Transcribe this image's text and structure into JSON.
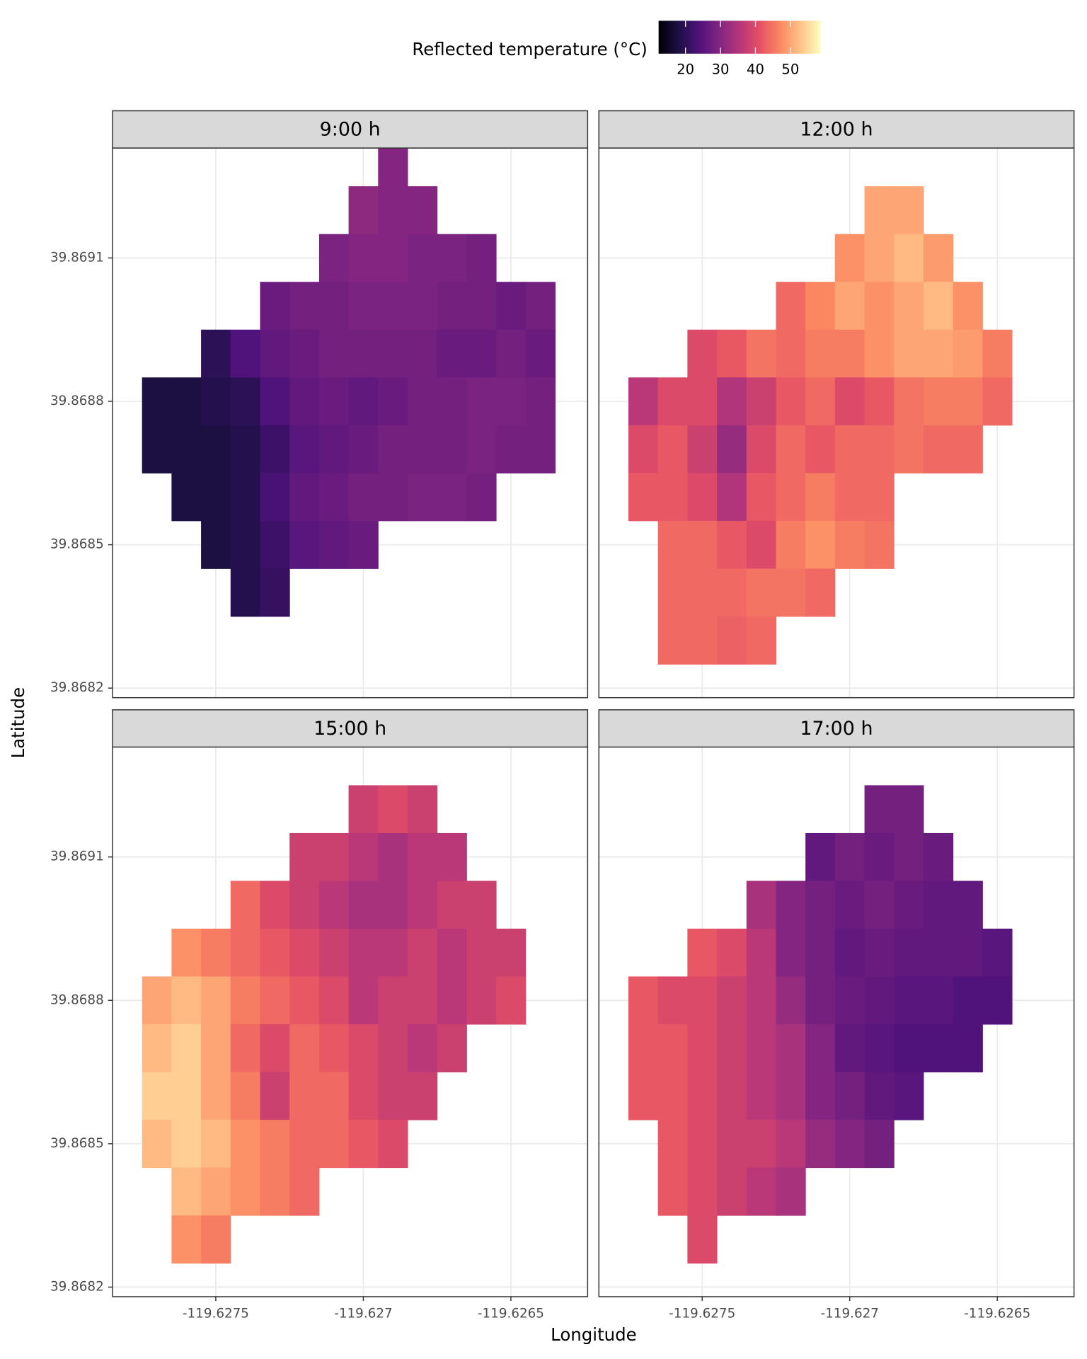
{
  "chart_data": {
    "type": "heatmap",
    "legend_title": "Reflected temperature (°C)",
    "colorscale": "magma",
    "clim": [
      12.3,
      58.6
    ],
    "cticks": [
      20,
      30,
      40,
      50
    ],
    "xlabel": "Longitude",
    "ylabel": "Latitude",
    "grid": true,
    "legend_position": "top",
    "xlim": [
      -119.62785,
      -119.62624
    ],
    "ylim": [
      39.86818,
      39.86933
    ],
    "xticks": [
      -119.6275,
      -119.627,
      -119.6265
    ],
    "yticks": [
      39.8682,
      39.8685,
      39.8688,
      39.8691
    ],
    "x": [
      -119.6278,
      -119.6277,
      -119.6276,
      -119.6275,
      -119.6274,
      -119.6273,
      -119.6272,
      -119.6271,
      -119.627,
      -119.6269,
      -119.6268,
      -119.6267,
      -119.6266,
      -119.6265,
      -119.6264,
      -119.6263
    ],
    "y": [
      39.8693,
      39.8692,
      39.8691,
      39.869,
      39.8689,
      39.8688,
      39.8687,
      39.8686,
      39.8685,
      39.8684,
      39.8683,
      39.8682
    ],
    "facets": [
      {
        "title": "9:00 h",
        "values": [
          [
            null,
            null,
            null,
            null,
            null,
            null,
            null,
            null,
            null,
            30,
            null,
            null,
            null,
            null,
            null,
            null
          ],
          [
            null,
            null,
            null,
            null,
            null,
            null,
            null,
            null,
            31,
            30,
            30,
            null,
            null,
            null,
            null,
            null
          ],
          [
            null,
            null,
            null,
            null,
            null,
            null,
            null,
            29,
            30,
            30,
            29,
            29,
            28,
            null,
            null,
            null
          ],
          [
            null,
            null,
            null,
            null,
            null,
            27,
            28,
            28,
            29,
            29,
            29,
            28,
            28,
            27,
            28,
            null
          ],
          [
            null,
            null,
            null,
            20,
            24,
            26,
            27,
            28,
            28,
            28,
            28,
            27,
            27,
            28,
            27,
            null
          ],
          [
            null,
            18,
            18,
            19,
            20,
            24,
            26,
            27,
            26,
            27,
            28,
            28,
            29,
            29,
            28,
            null
          ],
          [
            null,
            18,
            18,
            18,
            19,
            22,
            25,
            26,
            27,
            28,
            28,
            28,
            29,
            28,
            28,
            null
          ],
          [
            null,
            null,
            18,
            18,
            19,
            23,
            26,
            27,
            28,
            28,
            29,
            29,
            28,
            null,
            null,
            null
          ],
          [
            null,
            null,
            null,
            18,
            19,
            22,
            25,
            26,
            27,
            null,
            null,
            null,
            null,
            null,
            null,
            null
          ],
          [
            null,
            null,
            null,
            null,
            19,
            21,
            null,
            null,
            null,
            null,
            null,
            null,
            null,
            null,
            null,
            null
          ],
          [
            null,
            null,
            null,
            null,
            null,
            null,
            null,
            null,
            null,
            null,
            null,
            null,
            null,
            null,
            null,
            null
          ],
          [
            null,
            null,
            null,
            null,
            null,
            null,
            null,
            null,
            null,
            null,
            null,
            null,
            null,
            null,
            null,
            null
          ]
        ]
      },
      {
        "title": "12:00 h",
        "values": [
          [
            null,
            null,
            null,
            null,
            null,
            null,
            null,
            null,
            null,
            null,
            null,
            null,
            null,
            null,
            null,
            null
          ],
          [
            null,
            null,
            null,
            null,
            null,
            null,
            null,
            null,
            null,
            50,
            50,
            null,
            null,
            null,
            null,
            null
          ],
          [
            null,
            null,
            null,
            null,
            null,
            null,
            null,
            null,
            48,
            50,
            52,
            49,
            null,
            null,
            null,
            null
          ],
          [
            null,
            null,
            null,
            null,
            null,
            null,
            44,
            47,
            50,
            48,
            50,
            52,
            48,
            null,
            null,
            null
          ],
          [
            null,
            null,
            null,
            40,
            42,
            45,
            44,
            46,
            46,
            48,
            50,
            50,
            49,
            46,
            null,
            null
          ],
          [
            null,
            36,
            40,
            40,
            35,
            38,
            42,
            44,
            40,
            42,
            45,
            46,
            46,
            44,
            null,
            null
          ],
          [
            null,
            40,
            42,
            38,
            32,
            40,
            44,
            42,
            44,
            44,
            45,
            44,
            44,
            null,
            null,
            null
          ],
          [
            null,
            42,
            42,
            40,
            35,
            42,
            44,
            46,
            44,
            44,
            null,
            null,
            null,
            null,
            null,
            null
          ],
          [
            null,
            null,
            44,
            44,
            42,
            40,
            46,
            48,
            46,
            45,
            null,
            null,
            null,
            null,
            null,
            null
          ],
          [
            null,
            null,
            44,
            44,
            44,
            45,
            45,
            44,
            null,
            null,
            null,
            null,
            null,
            null,
            null,
            null
          ],
          [
            null,
            null,
            44,
            44,
            43,
            44,
            null,
            null,
            null,
            null,
            null,
            null,
            null,
            null,
            null,
            null
          ],
          [
            null,
            null,
            null,
            null,
            null,
            null,
            null,
            null,
            null,
            null,
            null,
            null,
            null,
            null,
            null,
            null
          ]
        ]
      },
      {
        "title": "15:00 h",
        "values": [
          [
            null,
            null,
            null,
            null,
            null,
            null,
            null,
            null,
            null,
            null,
            null,
            null,
            null,
            null,
            null,
            null
          ],
          [
            null,
            null,
            null,
            null,
            null,
            null,
            null,
            null,
            38,
            40,
            38,
            null,
            null,
            null,
            null,
            null
          ],
          [
            null,
            null,
            null,
            null,
            null,
            null,
            38,
            38,
            36,
            34,
            36,
            36,
            null,
            null,
            null,
            null
          ],
          [
            null,
            null,
            null,
            null,
            44,
            40,
            38,
            36,
            34,
            34,
            36,
            38,
            38,
            null,
            null,
            null
          ],
          [
            null,
            null,
            48,
            46,
            44,
            42,
            40,
            38,
            36,
            36,
            38,
            36,
            38,
            38,
            null,
            null
          ],
          [
            null,
            50,
            52,
            50,
            46,
            44,
            42,
            40,
            36,
            38,
            38,
            36,
            38,
            40,
            null,
            null
          ],
          [
            null,
            52,
            54,
            50,
            44,
            40,
            44,
            42,
            40,
            38,
            36,
            38,
            null,
            null,
            null,
            null
          ],
          [
            null,
            54,
            54,
            50,
            46,
            38,
            44,
            44,
            40,
            38,
            38,
            null,
            null,
            null,
            null,
            null
          ],
          [
            null,
            52,
            54,
            52,
            48,
            46,
            44,
            44,
            42,
            40,
            null,
            null,
            null,
            null,
            null,
            null
          ],
          [
            null,
            null,
            52,
            50,
            48,
            46,
            44,
            null,
            null,
            null,
            null,
            null,
            null,
            null,
            null,
            null
          ],
          [
            null,
            null,
            48,
            46,
            null,
            null,
            null,
            null,
            null,
            null,
            null,
            null,
            null,
            null,
            null,
            null
          ],
          [
            null,
            null,
            null,
            null,
            null,
            null,
            null,
            null,
            null,
            null,
            null,
            null,
            null,
            null,
            null,
            null
          ]
        ]
      },
      {
        "title": "17:00 h",
        "values": [
          [
            null,
            null,
            null,
            null,
            null,
            null,
            null,
            null,
            null,
            null,
            null,
            null,
            null,
            null,
            null,
            null
          ],
          [
            null,
            null,
            null,
            null,
            null,
            null,
            null,
            null,
            null,
            28,
            28,
            null,
            null,
            null,
            null,
            null
          ],
          [
            null,
            null,
            null,
            null,
            null,
            null,
            null,
            26,
            28,
            27,
            28,
            27,
            null,
            null,
            null,
            null
          ],
          [
            null,
            null,
            null,
            null,
            null,
            34,
            30,
            28,
            27,
            28,
            27,
            26,
            26,
            null,
            null,
            null
          ],
          [
            null,
            null,
            null,
            42,
            40,
            36,
            30,
            28,
            26,
            27,
            26,
            26,
            26,
            25,
            null,
            null
          ],
          [
            null,
            42,
            40,
            40,
            38,
            36,
            32,
            28,
            27,
            26,
            25,
            25,
            24,
            24,
            null,
            null
          ],
          [
            null,
            42,
            42,
            40,
            38,
            36,
            34,
            30,
            26,
            25,
            24,
            24,
            24,
            null,
            null,
            null
          ],
          [
            null,
            42,
            42,
            40,
            38,
            36,
            34,
            30,
            28,
            26,
            25,
            null,
            null,
            null,
            null,
            null
          ],
          [
            null,
            null,
            42,
            40,
            38,
            38,
            36,
            32,
            30,
            28,
            null,
            null,
            null,
            null,
            null,
            null
          ],
          [
            null,
            null,
            42,
            40,
            38,
            36,
            34,
            null,
            null,
            null,
            null,
            null,
            null,
            null,
            null,
            null
          ],
          [
            null,
            null,
            null,
            40,
            null,
            null,
            null,
            null,
            null,
            null,
            null,
            null,
            null,
            null,
            null,
            null
          ],
          [
            null,
            null,
            null,
            null,
            null,
            null,
            null,
            null,
            null,
            null,
            null,
            null,
            null,
            null,
            null,
            null
          ]
        ]
      }
    ]
  }
}
